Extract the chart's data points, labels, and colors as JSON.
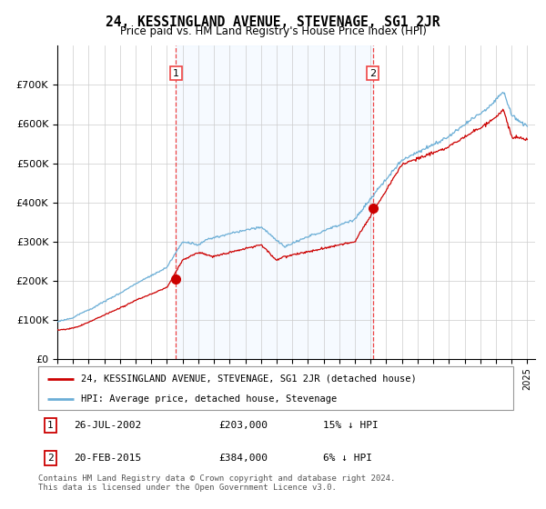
{
  "title": "24, KESSINGLAND AVENUE, STEVENAGE, SG1 2JR",
  "subtitle": "Price paid vs. HM Land Registry's House Price Index (HPI)",
  "ylabel_values": [
    "£0",
    "£100K",
    "£200K",
    "£300K",
    "£400K",
    "£500K",
    "£600K",
    "£700K"
  ],
  "ylim": [
    0,
    800000
  ],
  "yticks": [
    0,
    100000,
    200000,
    300000,
    400000,
    500000,
    600000,
    700000
  ],
  "sale1_date": 2002.57,
  "sale1_price": 203000,
  "sale2_date": 2015.13,
  "sale2_price": 384000,
  "legend_line1": "24, KESSINGLAND AVENUE, STEVENAGE, SG1 2JR (detached house)",
  "legend_line2": "HPI: Average price, detached house, Stevenage",
  "table_row1": [
    "1",
    "26-JUL-2002",
    "£203,000",
    "15% ↓ HPI"
  ],
  "table_row2": [
    "2",
    "20-FEB-2015",
    "£384,000",
    "6% ↓ HPI"
  ],
  "footer": "Contains HM Land Registry data © Crown copyright and database right 2024.\nThis data is licensed under the Open Government Licence v3.0.",
  "hpi_color": "#6baed6",
  "sale_color": "#cc0000",
  "vline_color": "#ee4444",
  "shade_color": "#ddeeff",
  "background_color": "#ffffff",
  "grid_color": "#cccccc",
  "xlim_start": 1995,
  "xlim_end": 2025.5
}
